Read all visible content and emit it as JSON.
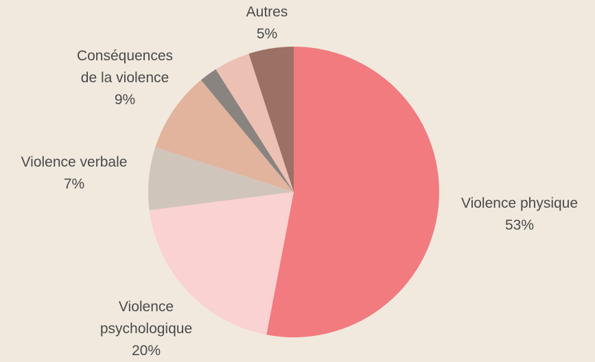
{
  "chart_data": {
    "type": "pie",
    "categories": [
      "Violence physique",
      "Violence psychologique",
      "Violence verbale",
      "Conséquences de la violence",
      null,
      null,
      "Autres"
    ],
    "values": [
      53,
      20,
      7,
      9,
      2,
      4,
      5
    ],
    "value_labels": [
      "53%",
      "20%",
      "7%",
      "9%",
      null,
      null,
      "5%"
    ],
    "colors": [
      "#f27b7f",
      "#fad2d2",
      "#d0c5bb",
      "#e2b39d",
      "#8a8480",
      "#edc0b4",
      "#9b7065"
    ]
  }
}
